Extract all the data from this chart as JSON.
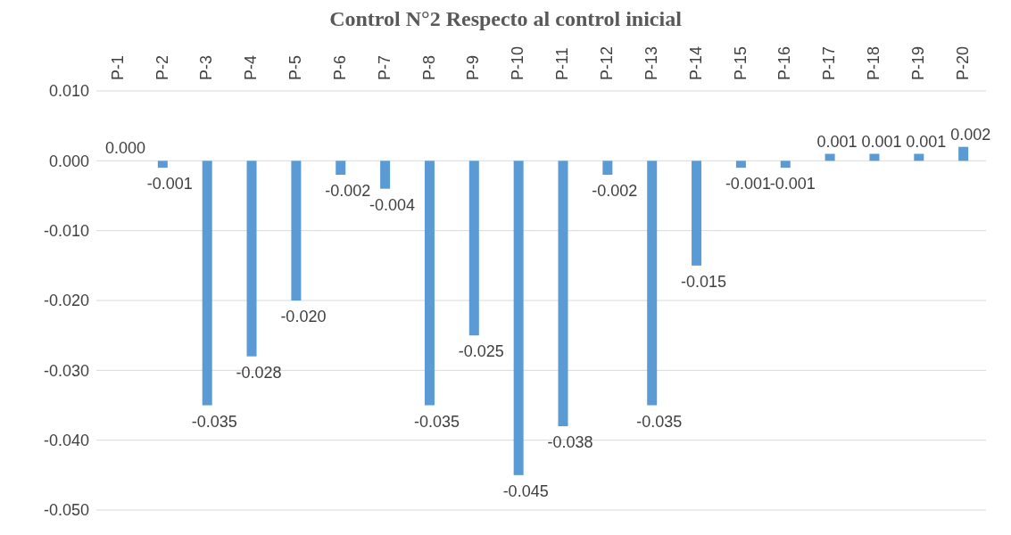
{
  "chart_data": {
    "type": "bar",
    "title": "Control N°2 Respecto al control inicial",
    "categories": [
      "P-1",
      "P-2",
      "P-3",
      "P-4",
      "P-5",
      "P-6",
      "P-7",
      "P-8",
      "P-9",
      "P-10",
      "P-11",
      "P-12",
      "P-13",
      "P-14",
      "P-15",
      "P-16",
      "P-17",
      "P-18",
      "P-19",
      "P-20"
    ],
    "values": [
      0.0,
      -0.001,
      -0.035,
      -0.028,
      -0.02,
      -0.002,
      -0.004,
      -0.035,
      -0.025,
      -0.045,
      -0.038,
      -0.002,
      -0.035,
      -0.015,
      -0.001,
      -0.001,
      0.001,
      0.001,
      0.001,
      0.002
    ],
    "value_labels": [
      "0.000",
      "-0.001",
      "-0.035",
      "-0.028",
      "-0.020",
      "-0.002",
      "-0.004",
      "-0.035",
      "-0.025",
      "-0.045",
      "-0.038",
      "-0.002",
      "-0.035",
      "-0.015",
      "-0.001",
      "-0.001",
      "0.001",
      "0.001",
      "0.001",
      "0.002"
    ],
    "color": "#5b9bd5",
    "ylim": [
      -0.05,
      0.01
    ],
    "yticks": [
      {
        "value": -0.05,
        "label": "-0.050"
      },
      {
        "value": -0.04,
        "label": "-0.040"
      },
      {
        "value": -0.03,
        "label": "-0.030"
      },
      {
        "value": -0.02,
        "label": "-0.020"
      },
      {
        "value": -0.01,
        "label": "-0.010"
      },
      {
        "value": 0,
        "label": "0.000"
      },
      {
        "value": 0.01,
        "label": "0.010"
      }
    ],
    "grid": "y"
  }
}
